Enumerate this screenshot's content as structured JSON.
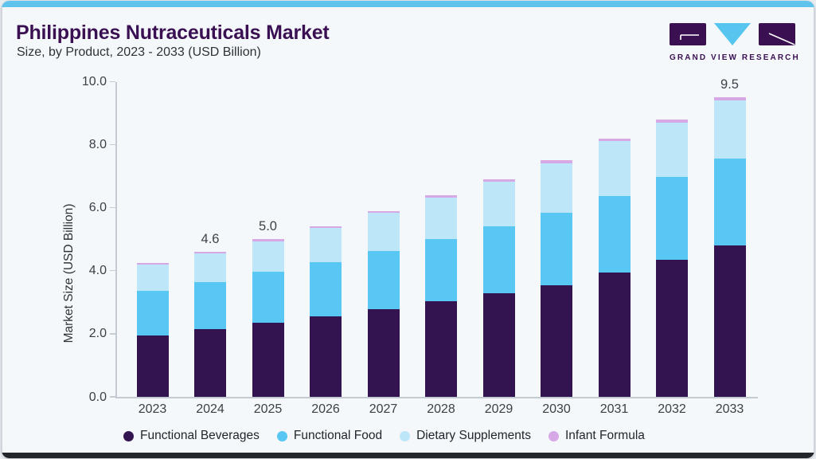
{
  "header": {
    "title": "Philippines Nutraceuticals Market",
    "subtitle": "Size, by Product, 2023 - 2033 (USD Billion)",
    "logo_text": "GRAND VIEW RESEARCH"
  },
  "colors": {
    "accent_top": "#5fc3ec",
    "accent_bottom": "#23262c",
    "title_purple": "#3a1053",
    "logo_purple": "#3a1053",
    "logo_cyan": "#56c5f0",
    "card_background": "#f4f8fb",
    "axis_gray": "#c5cbd2"
  },
  "chart_data": {
    "type": "bar",
    "stacked": true,
    "title": "Philippines Nutraceuticals Market Size, by Product, 2023 - 2033 (USD Billion)",
    "xlabel": "",
    "ylabel": "Market Size (USD Billion)",
    "ylim": [
      0,
      10
    ],
    "grid": false,
    "legend_position": "bottom",
    "y_ticks": [
      0,
      2,
      4,
      6,
      8,
      10
    ],
    "y_tick_labels": [
      "0.0",
      "2.0",
      "4.0",
      "6.0",
      "8.0",
      "10.0"
    ],
    "categories": [
      "2023",
      "2024",
      "2025",
      "2026",
      "2027",
      "2028",
      "2029",
      "2030",
      "2031",
      "2032",
      "2033"
    ],
    "series": [
      {
        "name": "Functional Beverages",
        "color": "#341450",
        "values": [
          1.95,
          2.15,
          2.35,
          2.55,
          2.78,
          3.02,
          3.28,
          3.55,
          3.95,
          4.35,
          4.8
        ]
      },
      {
        "name": "Functional Food",
        "color": "#58c7f3",
        "values": [
          1.4,
          1.5,
          1.62,
          1.72,
          1.85,
          1.98,
          2.12,
          2.28,
          2.42,
          2.62,
          2.75
        ]
      },
      {
        "name": "Dietary Supplements",
        "color": "#bde6f8",
        "values": [
          0.85,
          0.9,
          0.97,
          1.08,
          1.2,
          1.32,
          1.42,
          1.58,
          1.73,
          1.73,
          1.85
        ]
      },
      {
        "name": "Infant Formula",
        "color": "#d7a8e6",
        "values": [
          0.05,
          0.05,
          0.06,
          0.05,
          0.07,
          0.08,
          0.08,
          0.09,
          0.1,
          0.1,
          0.1
        ]
      }
    ],
    "totals": [
      4.25,
      4.6,
      5.0,
      5.4,
      5.9,
      6.4,
      6.9,
      7.5,
      8.2,
      8.8,
      9.5
    ],
    "total_labels": {
      "2024": "4.6",
      "2025": "5.0",
      "2033": "9.5"
    }
  }
}
